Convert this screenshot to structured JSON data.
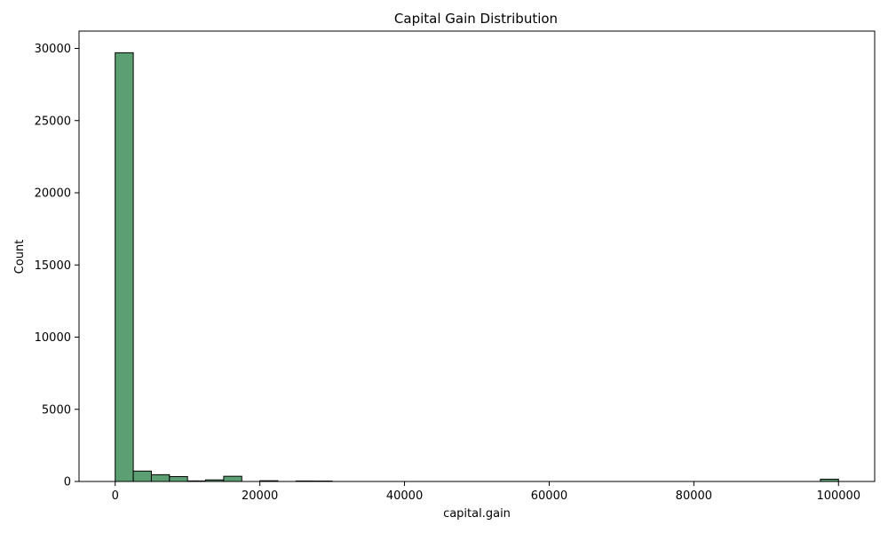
{
  "chart_data": {
    "type": "bar",
    "title": "Capital Gain Distribution",
    "xlabel": "capital.gain",
    "ylabel": "Count",
    "xlim": [
      -5000,
      105000
    ],
    "ylim": [
      0,
      31200
    ],
    "bar_color": "#5c9f73",
    "edge_color": "#000000",
    "x_ticks": [
      {
        "value": 0,
        "label": "0"
      },
      {
        "value": 20000,
        "label": "20000"
      },
      {
        "value": 40000,
        "label": "40000"
      },
      {
        "value": 60000,
        "label": "60000"
      },
      {
        "value": 80000,
        "label": "80000"
      },
      {
        "value": 100000,
        "label": "100000"
      }
    ],
    "y_ticks": [
      {
        "value": 0,
        "label": "0"
      },
      {
        "value": 5000,
        "label": "5000"
      },
      {
        "value": 10000,
        "label": "10000"
      },
      {
        "value": 15000,
        "label": "15000"
      },
      {
        "value": 20000,
        "label": "20000"
      },
      {
        "value": 25000,
        "label": "25000"
      },
      {
        "value": 30000,
        "label": "30000"
      }
    ],
    "bins": [
      {
        "x0": 0,
        "x1": 2500,
        "count": 29700
      },
      {
        "x0": 2500,
        "x1": 5000,
        "count": 720
      },
      {
        "x0": 5000,
        "x1": 7500,
        "count": 470
      },
      {
        "x0": 7500,
        "x1": 10000,
        "count": 340
      },
      {
        "x0": 10000,
        "x1": 12500,
        "count": 40
      },
      {
        "x0": 12500,
        "x1": 15000,
        "count": 110
      },
      {
        "x0": 15000,
        "x1": 17500,
        "count": 360
      },
      {
        "x0": 17500,
        "x1": 20000,
        "count": 0
      },
      {
        "x0": 20000,
        "x1": 22500,
        "count": 50
      },
      {
        "x0": 22500,
        "x1": 25000,
        "count": 0
      },
      {
        "x0": 25000,
        "x1": 27500,
        "count": 35
      },
      {
        "x0": 27500,
        "x1": 30000,
        "count": 30
      },
      {
        "x0": 97500,
        "x1": 100000,
        "count": 160
      }
    ]
  }
}
